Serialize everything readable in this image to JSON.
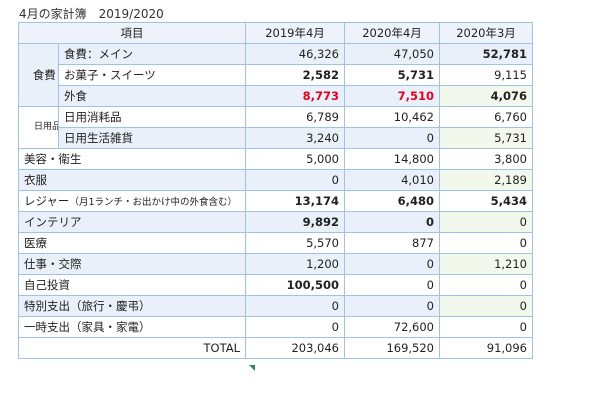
{
  "title": "4月の家計簿　2019/2020",
  "headers": {
    "item": "項目",
    "col1": "2019年4月",
    "col2": "2020年4月",
    "col3": "2020年3月"
  },
  "groups": {
    "food": "食費",
    "daily": "日用品"
  },
  "rows": [
    {
      "label": "食費：メイン",
      "v1": "46,326",
      "v2": "47,050",
      "v3": "52,781"
    },
    {
      "label": "お菓子・スイーツ",
      "v1": "2,582",
      "v2": "5,731",
      "v3": "9,115"
    },
    {
      "label": "外食",
      "v1": "8,773",
      "v2": "7,510",
      "v3": "4,076"
    },
    {
      "label": "日用消耗品",
      "v1": "6,789",
      "v2": "10,462",
      "v3": "6,760"
    },
    {
      "label": "日用生活雑貨",
      "v1": "3,240",
      "v2": "0",
      "v3": "5,731"
    },
    {
      "label": "美容・衛生",
      "v1": "5,000",
      "v2": "14,800",
      "v3": "3,800"
    },
    {
      "label": "衣服",
      "v1": "0",
      "v2": "4,010",
      "v3": "2,189"
    },
    {
      "label": "レジャー",
      "label_note": "（月1ランチ・お出かけ中の外食含む）",
      "v1": "13,174",
      "v2": "6,480",
      "v3": "5,434"
    },
    {
      "label": "インテリア",
      "v1": "9,892",
      "v2": "0",
      "v3": "0"
    },
    {
      "label": "医療",
      "v1": "5,570",
      "v2": "877",
      "v3": "0"
    },
    {
      "label": "仕事・交際",
      "v1": "1,200",
      "v2": "0",
      "v3": "1,210"
    },
    {
      "label": "自己投資",
      "v1": "100,500",
      "v2": "0",
      "v3": "0"
    },
    {
      "label": "特別支出（旅行・慶弔）",
      "v1": "0",
      "v2": "0",
      "v3": "0"
    },
    {
      "label": "一時支出（家具・家電）",
      "v1": "0",
      "v2": "72,600",
      "v3": "0"
    }
  ],
  "total": {
    "label": "TOTAL",
    "v1": "203,046",
    "v2": "169,520",
    "v3": "91,096"
  },
  "colors": {
    "border": "#9ec3e6",
    "highlight_red": "#e6001f",
    "row_blue": "#e9f0fa",
    "row_green": "#f3f8ec"
  }
}
